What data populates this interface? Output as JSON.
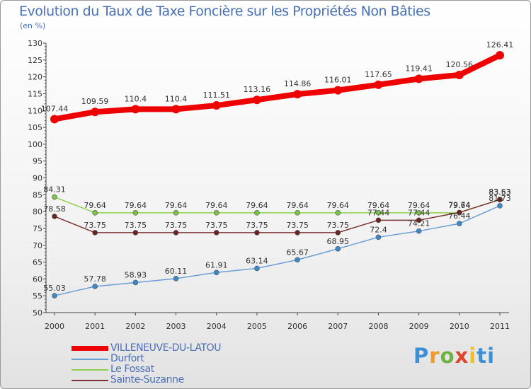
{
  "title": "Evolution du Taux de Taxe Foncière sur les Propriétés Non Bâties",
  "unit_label": "(en %)",
  "logo_text": "Proxiti",
  "chart_data": {
    "type": "line",
    "title": "Evolution du Taux de Taxe Foncière sur les Propriétés Non Bâties",
    "xlabel": "",
    "ylabel": "(en %)",
    "x": [
      "2000",
      "2001",
      "2002",
      "2003",
      "2004",
      "2005",
      "2006",
      "2007",
      "2008",
      "2009",
      "2010",
      "2011"
    ],
    "ylim": [
      50,
      130
    ],
    "yticks": [
      50,
      55,
      60,
      65,
      70,
      75,
      80,
      85,
      90,
      95,
      100,
      105,
      110,
      115,
      120,
      125,
      130
    ],
    "grid": false,
    "series": [
      {
        "name": "Durfort",
        "color": "#6a9fd3",
        "marker": "#3b88c9",
        "values": [
          55.03,
          57.78,
          58.93,
          60.11,
          61.91,
          63.14,
          65.67,
          68.95,
          72.4,
          74.21,
          76.44,
          81.73
        ],
        "labels": [
          "55.03",
          "57.78",
          "58.93",
          "60.11",
          "61.91",
          "63.14",
          "65.67",
          "68.95",
          "72.4",
          "74.21",
          "76.44",
          "81.73"
        ]
      },
      {
        "name": "Le Fossat",
        "color": "#8fd14f",
        "marker": "#7bc143",
        "values": [
          84.31,
          79.64,
          79.64,
          79.64,
          79.64,
          79.64,
          79.64,
          79.64,
          79.64,
          79.64,
          79.64,
          83.63
        ],
        "labels": [
          "84.31",
          "79.64",
          "79.64",
          "79.64",
          "79.64",
          "79.64",
          "79.64",
          "79.64",
          "79.64",
          "79.64",
          "79.64",
          "83.63"
        ]
      },
      {
        "name": "Sainte-Suzanne",
        "color": "#7b3434",
        "marker": "#6b2424",
        "values": [
          78.58,
          73.75,
          73.75,
          73.75,
          73.75,
          73.75,
          73.75,
          73.75,
          77.44,
          77.44,
          79.74,
          83.53
        ],
        "labels": [
          "78.58",
          "73.75",
          "73.75",
          "73.75",
          "73.75",
          "73.75",
          "73.75",
          "73.75",
          "77.44",
          "77.44",
          "79.74",
          "83.53"
        ]
      },
      {
        "name": "VILLENEUVE-DU-LATOU",
        "color": "#ee0000",
        "marker": "#ee0000",
        "values": [
          107.44,
          109.59,
          110.4,
          110.4,
          111.51,
          113.16,
          114.86,
          116.01,
          117.65,
          119.41,
          120.56,
          126.41
        ],
        "labels": [
          "107.44",
          "109.59",
          "110.4",
          "110.4",
          "111.51",
          "113.16",
          "114.86",
          "116.01",
          "117.65",
          "119.41",
          "120.56",
          "126.41"
        ]
      }
    ],
    "legend": [
      {
        "name": "VILLENEUVE-DU-LATOU",
        "color": "#ee0000"
      },
      {
        "name": "Durfort",
        "color": "#6a9fd3"
      },
      {
        "name": "Le Fossat",
        "color": "#8fd14f"
      },
      {
        "name": "Sainte-Suzanne",
        "color": "#7b3434"
      }
    ]
  }
}
